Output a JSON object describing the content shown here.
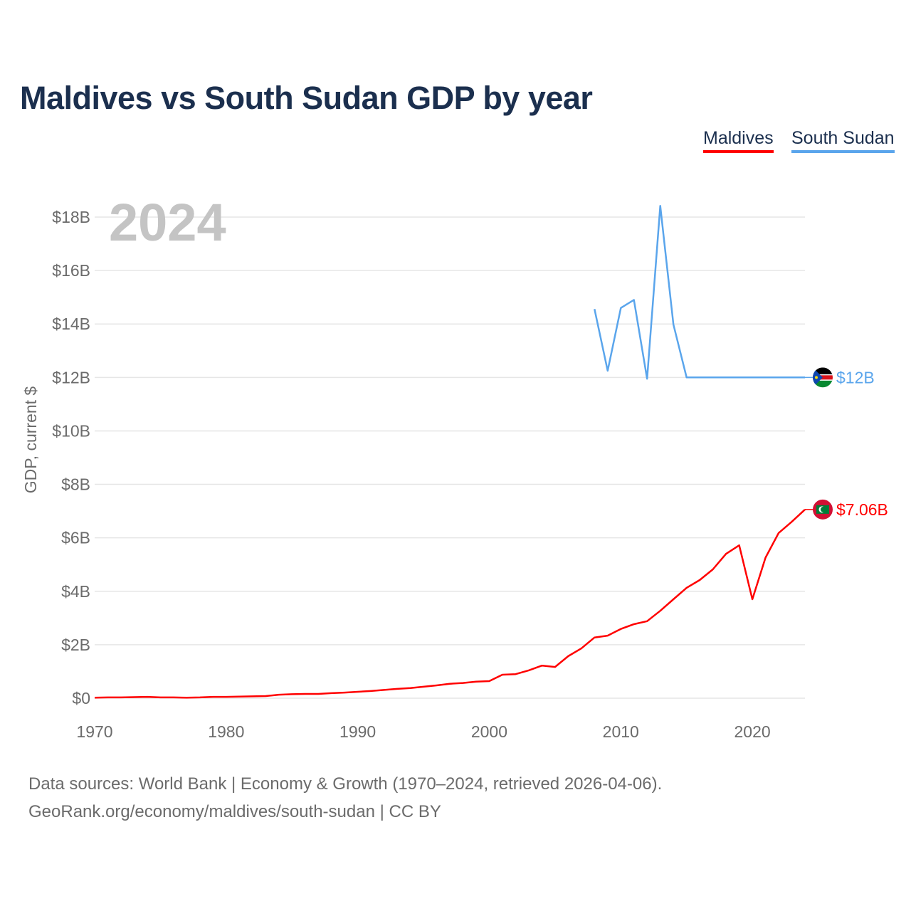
{
  "title": "Maldives vs South Sudan GDP by year",
  "legend": [
    {
      "label": "Maldives",
      "color": "#ff0000"
    },
    {
      "label": "South Sudan",
      "color": "#5aa5ec"
    }
  ],
  "footer": {
    "line1": "Data sources: World Bank | Economy & Growth (1970–2024, retrieved 2026-04-06).",
    "line2": "GeoRank.org/economy/maldives/south-sudan | CC BY"
  },
  "chart_data": {
    "type": "line",
    "title": "Maldives vs South Sudan GDP by year",
    "year_label": "2024",
    "ylabel": "GDP, current $",
    "xlabel": "",
    "xlim": [
      1970,
      2024
    ],
    "ylim": [
      0,
      18
    ],
    "x_ticks": [
      1970,
      1980,
      1990,
      2000,
      2010,
      2020
    ],
    "y_ticks": [
      {
        "v": 0,
        "label": "$0"
      },
      {
        "v": 2,
        "label": "$2B"
      },
      {
        "v": 4,
        "label": "$4B"
      },
      {
        "v": 6,
        "label": "$6B"
      },
      {
        "v": 8,
        "label": "$8B"
      },
      {
        "v": 10,
        "label": "$10B"
      },
      {
        "v": 12,
        "label": "$12B"
      },
      {
        "v": 14,
        "label": "$14B"
      },
      {
        "v": 16,
        "label": "$16B"
      },
      {
        "v": 18,
        "label": "$18B"
      }
    ],
    "grid": true,
    "legend_position": "top-right",
    "series": [
      {
        "name": "Maldives",
        "color": "#ff0000",
        "end_label": "$7.06B",
        "start_year": 1970,
        "values": [
          0.02,
          0.03,
          0.03,
          0.04,
          0.05,
          0.03,
          0.03,
          0.02,
          0.03,
          0.05,
          0.05,
          0.06,
          0.07,
          0.08,
          0.13,
          0.15,
          0.16,
          0.16,
          0.19,
          0.21,
          0.24,
          0.27,
          0.31,
          0.35,
          0.38,
          0.43,
          0.48,
          0.54,
          0.57,
          0.62,
          0.64,
          0.88,
          0.9,
          1.04,
          1.22,
          1.17,
          1.57,
          1.86,
          2.27,
          2.34,
          2.59,
          2.77,
          2.88,
          3.27,
          3.7,
          4.13,
          4.42,
          4.82,
          5.4,
          5.72,
          3.7,
          5.26,
          6.18,
          6.6,
          7.06
        ]
      },
      {
        "name": "South Sudan",
        "color": "#5aa5ec",
        "end_label": "$12B",
        "start_year": 2008,
        "values": [
          14.56,
          12.25,
          14.6,
          14.9,
          11.95,
          18.42,
          13.98,
          12.0,
          12.0,
          12.0,
          12.0,
          12.0,
          12.0,
          12.0,
          12.0,
          12.0,
          12.0
        ]
      }
    ]
  }
}
